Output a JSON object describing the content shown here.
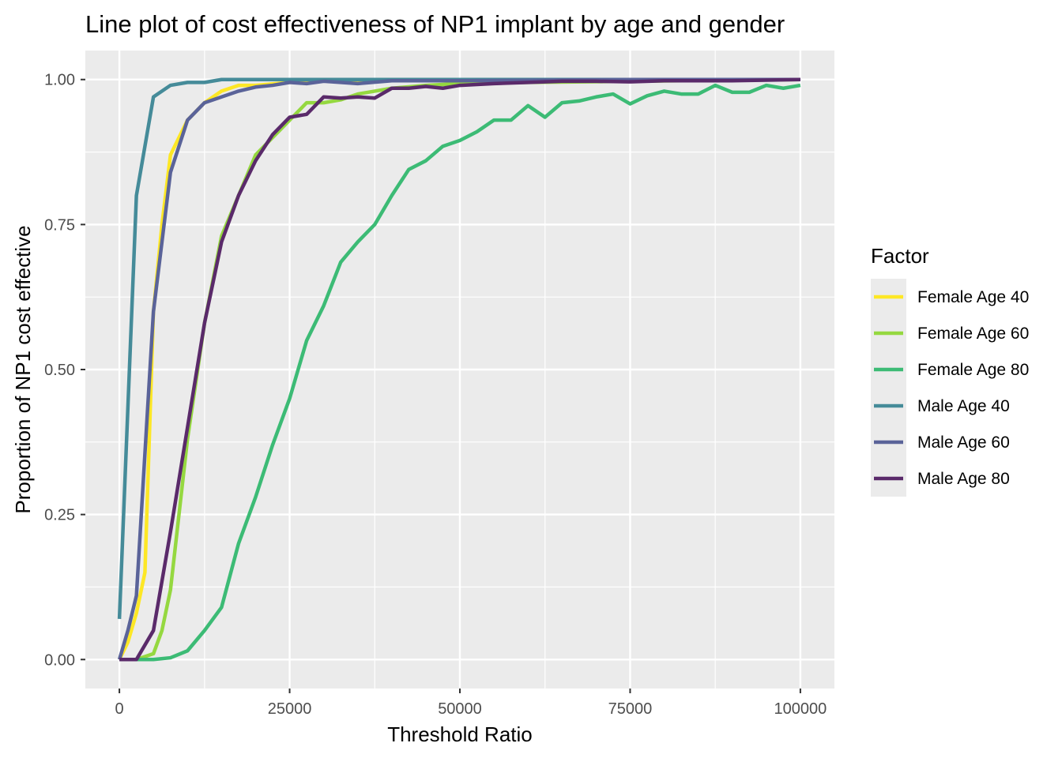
{
  "chart_data": {
    "type": "line",
    "title": "Line plot of cost effectiveness of NP1 implant by age and gender",
    "xlabel": "Threshold Ratio",
    "ylabel": "Proportion of NP1 cost effective",
    "xlim": [
      -5000,
      105000
    ],
    "ylim": [
      -0.05,
      1.05
    ],
    "x_ticks": [
      0,
      25000,
      50000,
      75000,
      100000
    ],
    "x_tick_labels": [
      "0",
      "25000",
      "50000",
      "75000",
      "100000"
    ],
    "y_ticks": [
      0,
      0.25,
      0.5,
      0.75,
      1.0
    ],
    "y_tick_labels": [
      "0.00",
      "0.25",
      "0.50",
      "0.75",
      "1.00"
    ],
    "grid": true,
    "legend": {
      "title": "Factor",
      "position": "right"
    },
    "series": [
      {
        "name": "Female Age 40",
        "color": "#FDE725",
        "points": [
          [
            0,
            0
          ],
          [
            1250,
            0.03
          ],
          [
            2500,
            0.08
          ],
          [
            3750,
            0.15
          ],
          [
            5000,
            0.6
          ],
          [
            6250,
            0.75
          ],
          [
            7500,
            0.87
          ],
          [
            10000,
            0.93
          ],
          [
            12500,
            0.96
          ],
          [
            15000,
            0.98
          ],
          [
            17500,
            0.99
          ],
          [
            20000,
            0.99
          ],
          [
            25000,
            0.995
          ],
          [
            30000,
            0.998
          ],
          [
            40000,
            1.0
          ],
          [
            50000,
            1.0
          ],
          [
            75000,
            1.0
          ],
          [
            100000,
            1.0
          ]
        ]
      },
      {
        "name": "Female Age 60",
        "color": "#95D840",
        "points": [
          [
            0,
            0
          ],
          [
            2500,
            0
          ],
          [
            5000,
            0.01
          ],
          [
            6250,
            0.05
          ],
          [
            7500,
            0.12
          ],
          [
            8750,
            0.25
          ],
          [
            10000,
            0.38
          ],
          [
            12500,
            0.58
          ],
          [
            15000,
            0.73
          ],
          [
            17500,
            0.8
          ],
          [
            20000,
            0.87
          ],
          [
            22500,
            0.9
          ],
          [
            25000,
            0.93
          ],
          [
            27500,
            0.96
          ],
          [
            30000,
            0.96
          ],
          [
            32500,
            0.965
          ],
          [
            35000,
            0.975
          ],
          [
            37500,
            0.98
          ],
          [
            40000,
            0.985
          ],
          [
            45000,
            0.99
          ],
          [
            50000,
            0.993
          ],
          [
            60000,
            0.995
          ],
          [
            75000,
            0.997
          ],
          [
            100000,
            1.0
          ]
        ]
      },
      {
        "name": "Female Age 80",
        "color": "#3CBB75",
        "points": [
          [
            0,
            0
          ],
          [
            2500,
            0
          ],
          [
            5000,
            0
          ],
          [
            7500,
            0.003
          ],
          [
            10000,
            0.015
          ],
          [
            12500,
            0.05
          ],
          [
            15000,
            0.09
          ],
          [
            17500,
            0.2
          ],
          [
            20000,
            0.28
          ],
          [
            22500,
            0.37
          ],
          [
            25000,
            0.45
          ],
          [
            27500,
            0.55
          ],
          [
            30000,
            0.61
          ],
          [
            32500,
            0.685
          ],
          [
            35000,
            0.72
          ],
          [
            37500,
            0.75
          ],
          [
            40000,
            0.8
          ],
          [
            42500,
            0.845
          ],
          [
            45000,
            0.86
          ],
          [
            47500,
            0.885
          ],
          [
            50000,
            0.895
          ],
          [
            52500,
            0.91
          ],
          [
            55000,
            0.93
          ],
          [
            57500,
            0.93
          ],
          [
            60000,
            0.955
          ],
          [
            62500,
            0.935
          ],
          [
            65000,
            0.96
          ],
          [
            67500,
            0.963
          ],
          [
            70000,
            0.97
          ],
          [
            72500,
            0.975
          ],
          [
            75000,
            0.958
          ],
          [
            77500,
            0.972
          ],
          [
            80000,
            0.98
          ],
          [
            82500,
            0.975
          ],
          [
            85000,
            0.975
          ],
          [
            87500,
            0.99
          ],
          [
            90000,
            0.978
          ],
          [
            92500,
            0.978
          ],
          [
            95000,
            0.99
          ],
          [
            97500,
            0.985
          ],
          [
            100000,
            0.99
          ]
        ]
      },
      {
        "name": "Male Age 40",
        "color": "#458B99",
        "points": [
          [
            0,
            0.07
          ],
          [
            2500,
            0.8
          ],
          [
            5000,
            0.97
          ],
          [
            7500,
            0.99
          ],
          [
            10000,
            0.995
          ],
          [
            12500,
            0.995
          ],
          [
            15000,
            1.0
          ],
          [
            20000,
            1.0
          ],
          [
            30000,
            1.0
          ],
          [
            50000,
            1.0
          ],
          [
            75000,
            1.0
          ],
          [
            100000,
            1.0
          ]
        ]
      },
      {
        "name": "Male Age 60",
        "color": "#5A6399",
        "points": [
          [
            0,
            0
          ],
          [
            1250,
            0.05
          ],
          [
            2500,
            0.11
          ],
          [
            5000,
            0.6
          ],
          [
            7500,
            0.84
          ],
          [
            10000,
            0.93
          ],
          [
            12500,
            0.96
          ],
          [
            15000,
            0.97
          ],
          [
            17500,
            0.98
          ],
          [
            20000,
            0.987
          ],
          [
            22500,
            0.99
          ],
          [
            25000,
            0.995
          ],
          [
            27500,
            0.993
          ],
          [
            30000,
            0.997
          ],
          [
            35000,
            0.993
          ],
          [
            40000,
            0.998
          ],
          [
            50000,
            0.998
          ],
          [
            75000,
            1.0
          ],
          [
            100000,
            1.0
          ]
        ]
      },
      {
        "name": "Male Age 80",
        "color": "#5A2A6A",
        "points": [
          [
            0,
            0
          ],
          [
            2500,
            0
          ],
          [
            5000,
            0.05
          ],
          [
            7500,
            0.22
          ],
          [
            10000,
            0.4
          ],
          [
            12500,
            0.58
          ],
          [
            15000,
            0.72
          ],
          [
            17500,
            0.8
          ],
          [
            20000,
            0.86
          ],
          [
            22500,
            0.905
          ],
          [
            25000,
            0.935
          ],
          [
            27500,
            0.94
          ],
          [
            30000,
            0.97
          ],
          [
            32500,
            0.968
          ],
          [
            35000,
            0.97
          ],
          [
            37500,
            0.968
          ],
          [
            40000,
            0.985
          ],
          [
            42500,
            0.985
          ],
          [
            45000,
            0.988
          ],
          [
            47500,
            0.985
          ],
          [
            50000,
            0.99
          ],
          [
            55000,
            0.993
          ],
          [
            60000,
            0.995
          ],
          [
            65000,
            0.997
          ],
          [
            70000,
            0.997
          ],
          [
            75000,
            0.996
          ],
          [
            80000,
            0.998
          ],
          [
            90000,
            0.998
          ],
          [
            100000,
            1.0
          ]
        ]
      }
    ]
  }
}
